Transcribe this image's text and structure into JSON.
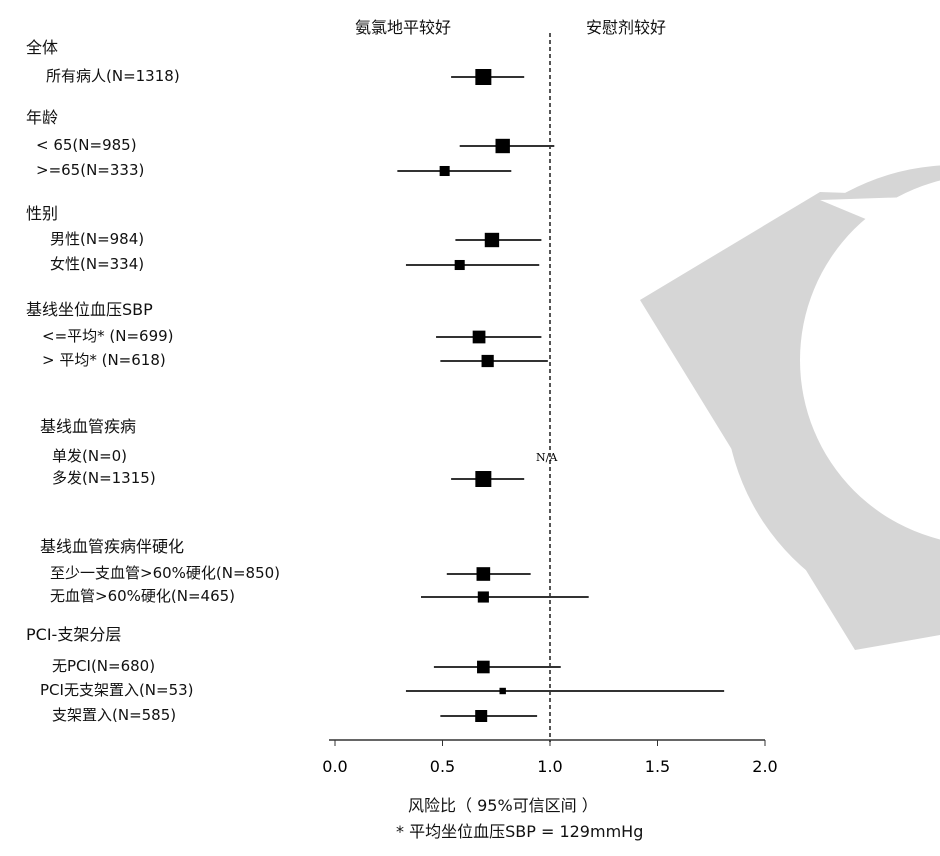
{
  "chart_data": {
    "type": "forest",
    "header_left": "氨氯地平较好",
    "header_right": "安慰剂较好",
    "xlabel": "风险比（ 95%可信区间 ）",
    "footnote": "* 平均坐位血压SBP = 129mmHg",
    "xlim": [
      0.0,
      2.0
    ],
    "xticks": [
      "0.0",
      "0.5",
      "1.0",
      "1.5",
      "2.0"
    ],
    "reference_line": 1.0,
    "na_label": "N/A",
    "groups": [
      {
        "title": "全体",
        "rows": [
          {
            "label": "所有病人(N=1318)",
            "hr": 0.69,
            "lo": 0.54,
            "hi": 0.88,
            "n": 1318
          }
        ]
      },
      {
        "title": "年龄",
        "rows": [
          {
            "label": "< 65(N=985)",
            "hr": 0.78,
            "lo": 0.58,
            "hi": 1.02,
            "n": 985
          },
          {
            "label": ">=65(N=333)",
            "hr": 0.51,
            "lo": 0.29,
            "hi": 0.82,
            "n": 333
          }
        ]
      },
      {
        "title": "性别",
        "rows": [
          {
            "label": "男性(N=984)",
            "hr": 0.73,
            "lo": 0.56,
            "hi": 0.96,
            "n": 984
          },
          {
            "label": "女性(N=334)",
            "hr": 0.58,
            "lo": 0.33,
            "hi": 0.95,
            "n": 334
          }
        ]
      },
      {
        "title": "基线坐位血压SBP",
        "rows": [
          {
            "label": "<=平均* (N=699)",
            "hr": 0.67,
            "lo": 0.47,
            "hi": 0.96,
            "n": 699
          },
          {
            "label": "> 平均* (N=618)",
            "hr": 0.71,
            "lo": 0.49,
            "hi": 0.99,
            "n": 618
          }
        ]
      },
      {
        "title": "基线血管疾病",
        "rows": [
          {
            "label": "单发(N=0)",
            "hr": null,
            "lo": null,
            "hi": null,
            "n": 0
          },
          {
            "label": "多发(N=1315)",
            "hr": 0.69,
            "lo": 0.54,
            "hi": 0.88,
            "n": 1315
          }
        ]
      },
      {
        "title": "基线血管疾病伴硬化",
        "rows": [
          {
            "label": "至少一支血管>60%硬化(N=850)",
            "hr": 0.69,
            "lo": 0.52,
            "hi": 0.91,
            "n": 850
          },
          {
            "label": "无血管>60%硬化(N=465)",
            "hr": 0.69,
            "lo": 0.4,
            "hi": 1.18,
            "n": 465
          }
        ]
      },
      {
        "title": "PCI-支架分层",
        "rows": [
          {
            "label": "无PCI(N=680)",
            "hr": 0.69,
            "lo": 0.46,
            "hi": 1.05,
            "n": 680
          },
          {
            "label": "PCI无支架置入(N=53)",
            "hr": 0.78,
            "lo": 0.33,
            "hi": 1.81,
            "n": 53
          },
          {
            "label": "支架置入(N=585)",
            "hr": 0.68,
            "lo": 0.49,
            "hi": 0.94,
            "n": 585
          }
        ]
      }
    ]
  },
  "colors": {
    "ink": "#000000",
    "line": "#333333",
    "watermark": "#d6d6d6"
  }
}
